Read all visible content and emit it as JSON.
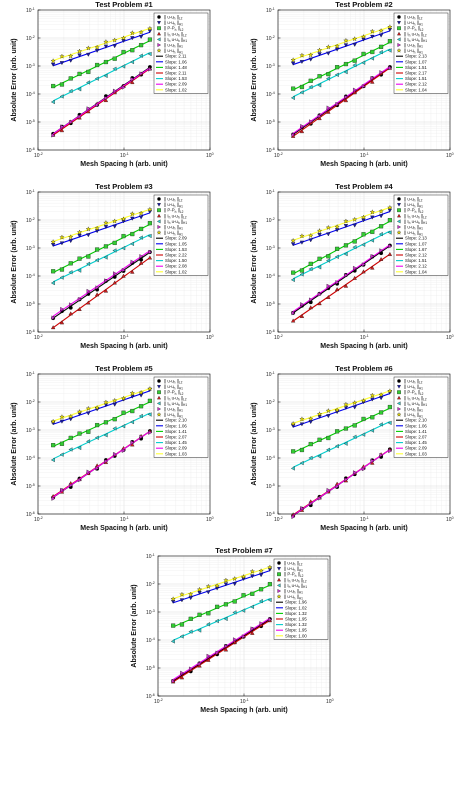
{
  "figure": {
    "xlabel": "Mesh Spacing h (arb. unit)",
    "ylabel": "Absolute Error (arb. unit)"
  },
  "legend_labels": [
    "|| u-u_h ||_L2",
    "|| u-u_h ||_H1",
    "|| P-P_h ||_L2",
    "|| I_h u-u_h ||_L2",
    "|| I_h u-u_h ||_H1",
    "|| u-u_h ||_H1",
    "|| u-u_h ||_H1"
  ],
  "series_colors": [
    "#000000",
    "#1a1aa8",
    "#33cc33",
    "#cc1f1f",
    "#33cccc",
    "#cc33cc",
    "#f2e600"
  ],
  "fit_colors": [
    "#000000",
    "#0000ee",
    "#00cc00",
    "#cc0000",
    "#00cccc",
    "#ee00ee",
    "#ffff33"
  ],
  "markers": [
    "circle",
    "triangle-down",
    "square",
    "triangle-up",
    "triangle-left",
    "triangle-right",
    "star"
  ],
  "chart_data": [
    {
      "type": "scatter",
      "title": "Test Problem #1",
      "xlabel": "Mesh Spacing h (arb. unit)",
      "ylabel": "Absolute Error (arb. unit)",
      "x_scale": "log",
      "y_scale": "log",
      "xlim": [
        0.01,
        1
      ],
      "ylim": [
        1e-06,
        0.1
      ],
      "x_ticks": [
        "10^-2",
        "10^-1",
        "10^0"
      ],
      "y_ticks": [
        "10^-6",
        "10^-5",
        "10^-4",
        "10^-3",
        "10^-2",
        "10^-1"
      ],
      "grid": true,
      "legend": "right-inside",
      "h_range": [
        0.015,
        0.2
      ],
      "series": [
        {
          "label": "|| u-u_h ||_L2",
          "c_at_h_max": 0.0009,
          "slope": 2.11
        },
        {
          "label": "|| u-u_h ||_H1",
          "c_at_h_max": 0.016,
          "slope": 1.06
        },
        {
          "label": "|| P-P_h ||_L2",
          "c_at_h_max": 0.008,
          "slope": 1.48
        },
        {
          "label": "|| I_h u-u_h ||_L2",
          "c_at_h_max": 0.0008,
          "slope": 2.11
        },
        {
          "label": "|| I_h u-u_h ||_H1",
          "c_at_h_max": 0.003,
          "slope": 1.53
        },
        {
          "label": "|| u-u_h ||_H1",
          "c_at_h_max": 0.00085,
          "slope": 2.09
        },
        {
          "label": "|| u-u_h ||_H1",
          "c_at_h_max": 0.022,
          "slope": 1.02
        }
      ],
      "slopes": [
        "Slope: 2.11",
        "Slope: 1.06",
        "Slope: 1.48",
        "Slope: 2.11",
        "Slope: 1.53",
        "Slope: 2.09",
        "Slope: 1.02"
      ]
    },
    {
      "type": "scatter",
      "title": "Test Problem #2",
      "xlabel": "Mesh Spacing h (arb. unit)",
      "ylabel": "Absolute Error (arb. unit)",
      "x_scale": "log",
      "y_scale": "log",
      "xlim": [
        0.01,
        1
      ],
      "ylim": [
        1e-06,
        0.1
      ],
      "x_ticks": [
        "10^-2",
        "10^-1",
        "10^0"
      ],
      "y_ticks": [
        "10^-6",
        "10^-5",
        "10^-4",
        "10^-3",
        "10^-2",
        "10^-1"
      ],
      "grid": true,
      "legend": "right-inside",
      "h_range": [
        0.015,
        0.2
      ],
      "series": [
        {
          "label": "|| u-u_h ||_L2",
          "c_at_h_max": 0.0009,
          "slope": 2.13
        },
        {
          "label": "|| u-u_h ||_H1",
          "c_at_h_max": 0.018,
          "slope": 1.07
        },
        {
          "label": "|| P-P_h ||_L2",
          "c_at_h_max": 0.007,
          "slope": 1.51
        },
        {
          "label": "|| I_h u-u_h ||_L2",
          "c_at_h_max": 0.00085,
          "slope": 2.17
        },
        {
          "label": "|| I_h u-u_h ||_H1",
          "c_at_h_max": 0.004,
          "slope": 1.51
        },
        {
          "label": "|| u-u_h ||_H1",
          "c_at_h_max": 0.00095,
          "slope": 2.12
        },
        {
          "label": "|| u-u_h ||_H1",
          "c_at_h_max": 0.025,
          "slope": 1.04
        }
      ],
      "slopes": [
        "Slope: 2.13",
        "Slope: 1.07",
        "Slope: 1.51",
        "Slope: 2.17",
        "Slope: 1.51",
        "Slope: 2.12",
        "Slope: 1.04"
      ]
    },
    {
      "type": "scatter",
      "title": "Test Problem #3",
      "xlabel": "Mesh Spacing h (arb. unit)",
      "ylabel": "Absolute Error (arb. unit)",
      "x_scale": "log",
      "y_scale": "log",
      "xlim": [
        0.01,
        1
      ],
      "ylim": [
        1e-06,
        0.1
      ],
      "x_ticks": [
        "10^-2",
        "10^-1",
        "10^0"
      ],
      "y_ticks": [
        "10^-6",
        "10^-5",
        "10^-4",
        "10^-3",
        "10^-2",
        "10^-1"
      ],
      "grid": true,
      "legend": "right-inside",
      "h_range": [
        0.015,
        0.2
      ],
      "series": [
        {
          "label": "|| u-u_h ||_L2",
          "c_at_h_max": 0.0007,
          "slope": 2.09
        },
        {
          "label": "|| u-u_h ||_H1",
          "c_at_h_max": 0.018,
          "slope": 1.05
        },
        {
          "label": "|| P-P_h ||_L2",
          "c_at_h_max": 0.007,
          "slope": 1.53
        },
        {
          "label": "|| I_h u-u_h ||_L2",
          "c_at_h_max": 0.00045,
          "slope": 2.22
        },
        {
          "label": "|| I_h u-u_h ||_H1",
          "c_at_h_max": 0.003,
          "slope": 1.5
        },
        {
          "label": "|| u-u_h ||_H1",
          "c_at_h_max": 0.0008,
          "slope": 2.08
        },
        {
          "label": "|| u-u_h ||_H1",
          "c_at_h_max": 0.024,
          "slope": 1.02
        }
      ],
      "slopes": [
        "Slope: 2.09",
        "Slope: 1.05",
        "Slope: 1.53",
        "Slope: 2.22",
        "Slope: 1.50",
        "Slope: 2.08",
        "Slope: 1.02"
      ]
    },
    {
      "type": "scatter",
      "title": "Test Problem #4",
      "xlabel": "Mesh Spacing h (arb. unit)",
      "ylabel": "Absolute Error (arb. unit)",
      "x_scale": "log",
      "y_scale": "log",
      "xlim": [
        0.01,
        1
      ],
      "ylim": [
        1e-06,
        0.1
      ],
      "x_ticks": [
        "10^-2",
        "10^-1",
        "10^0"
      ],
      "y_ticks": [
        "10^-6",
        "10^-5",
        "10^-4",
        "10^-3",
        "10^-2",
        "10^-1"
      ],
      "grid": true,
      "legend": "right-inside",
      "h_range": [
        0.015,
        0.2
      ],
      "series": [
        {
          "label": "|| u-u_h ||_L2",
          "c_at_h_max": 0.0012,
          "slope": 2.13
        },
        {
          "label": "|| u-u_h ||_H1",
          "c_at_h_max": 0.02,
          "slope": 1.07
        },
        {
          "label": "|| P-P_h ||_L2",
          "c_at_h_max": 0.009,
          "slope": 1.67
        },
        {
          "label": "|| I_h u-u_h ||_L2",
          "c_at_h_max": 0.0006,
          "slope": 2.12
        },
        {
          "label": "|| I_h u-u_h ||_H1",
          "c_at_h_max": 0.004,
          "slope": 1.51
        },
        {
          "label": "|| u-u_h ||_H1",
          "c_at_h_max": 0.0013,
          "slope": 2.12
        },
        {
          "label": "|| u-u_h ||_H1",
          "c_at_h_max": 0.028,
          "slope": 1.04
        }
      ],
      "slopes": [
        "Slope: 2.13",
        "Slope: 1.07",
        "Slope: 1.67",
        "Slope: 2.12",
        "Slope: 1.51",
        "Slope: 2.12",
        "Slope: 1.04"
      ]
    },
    {
      "type": "scatter",
      "title": "Test Problem #5",
      "xlabel": "Mesh Spacing h (arb. unit)",
      "ylabel": "Absolute Error (arb. unit)",
      "x_scale": "log",
      "y_scale": "log",
      "xlim": [
        0.01,
        1
      ],
      "ylim": [
        1e-06,
        0.1
      ],
      "x_ticks": [
        "10^-2",
        "10^-1",
        "10^0"
      ],
      "y_ticks": [
        "10^-6",
        "10^-5",
        "10^-4",
        "10^-3",
        "10^-2",
        "10^-1"
      ],
      "grid": true,
      "legend": "right-inside",
      "h_range": [
        0.015,
        0.2
      ],
      "series": [
        {
          "label": "|| u-u_h ||_L2",
          "c_at_h_max": 0.0009,
          "slope": 2.1
        },
        {
          "label": "|| u-u_h ||_H1",
          "c_at_h_max": 0.025,
          "slope": 1.06
        },
        {
          "label": "|| P-P_h ||_L2",
          "c_at_h_max": 0.01,
          "slope": 1.41
        },
        {
          "label": "|| I_h u-u_h ||_L2",
          "c_at_h_max": 0.0009,
          "slope": 2.07
        },
        {
          "label": "|| I_h u-u_h ||_H1",
          "c_at_h_max": 0.004,
          "slope": 1.45
        },
        {
          "label": "|| u-u_h ||_H1",
          "c_at_h_max": 0.0009,
          "slope": 2.09
        },
        {
          "label": "|| u-u_h ||_H1",
          "c_at_h_max": 0.03,
          "slope": 1.03
        }
      ],
      "slopes": [
        "Slope: 2.10",
        "Slope: 1.06",
        "Slope: 1.41",
        "Slope: 2.07",
        "Slope: 1.45",
        "Slope: 2.09",
        "Slope: 1.03"
      ]
    },
    {
      "type": "scatter",
      "title": "Test Problem #6",
      "xlabel": "Mesh Spacing h (arb. unit)",
      "ylabel": "Absolute Error (arb. unit)",
      "x_scale": "log",
      "y_scale": "log",
      "xlim": [
        0.01,
        1
      ],
      "ylim": [
        1e-06,
        0.1
      ],
      "x_ticks": [
        "10^-2",
        "10^-1",
        "10^0"
      ],
      "y_ticks": [
        "10^-6",
        "10^-5",
        "10^-4",
        "10^-3",
        "10^-2",
        "10^-1"
      ],
      "grid": true,
      "legend": "right-inside",
      "h_range": [
        0.015,
        0.2
      ],
      "series": [
        {
          "label": "|| u-u_h ||_L2",
          "c_at_h_max": 0.0002,
          "slope": 2.1
        },
        {
          "label": "|| u-u_h ||_H1",
          "c_at_h_max": 0.02,
          "slope": 1.06
        },
        {
          "label": "|| P-P_h ||_L2",
          "c_at_h_max": 0.006,
          "slope": 1.41
        },
        {
          "label": "|| I_h u-u_h ||_L2",
          "c_at_h_max": 0.0002,
          "slope": 2.07
        },
        {
          "label": "|| I_h u-u_h ||_H1",
          "c_at_h_max": 0.002,
          "slope": 1.45
        },
        {
          "label": "|| u-u_h ||_H1",
          "c_at_h_max": 0.0002,
          "slope": 2.09
        },
        {
          "label": "|| u-u_h ||_H1",
          "c_at_h_max": 0.025,
          "slope": 1.03
        }
      ],
      "slopes": [
        "Slope: 2.10",
        "Slope: 1.06",
        "Slope: 1.41",
        "Slope: 2.07",
        "Slope: 1.45",
        "Slope: 2.09",
        "Slope: 1.03"
      ]
    },
    {
      "type": "scatter",
      "title": "Test Problem #7",
      "xlabel": "Mesh Spacing h (arb. unit)",
      "ylabel": "Absolute Error (arb. unit)",
      "x_scale": "log",
      "y_scale": "log",
      "xlim": [
        0.01,
        1
      ],
      "ylim": [
        1e-06,
        0.1
      ],
      "x_ticks": [
        "10^-2",
        "10^-1",
        "10^0"
      ],
      "y_ticks": [
        "10^-6",
        "10^-5",
        "10^-4",
        "10^-3",
        "10^-2",
        "10^-1"
      ],
      "grid": true,
      "legend": "right-inside",
      "h_range": [
        0.015,
        0.2
      ],
      "series": [
        {
          "label": "|| u-u_h ||_L2",
          "c_at_h_max": 0.00055,
          "slope": 1.96
        },
        {
          "label": "|| u-u_h ||_H1",
          "c_at_h_max": 0.03,
          "slope": 1.02
        },
        {
          "label": "|| P-P_h ||_L2",
          "c_at_h_max": 0.009,
          "slope": 1.32
        },
        {
          "label": "|| I_h u-u_h ||_L2",
          "c_at_h_max": 0.0005,
          "slope": 1.95
        },
        {
          "label": "|| I_h u-u_h ||_H1",
          "c_at_h_max": 0.003,
          "slope": 1.32
        },
        {
          "label": "|| u-u_h ||_H1",
          "c_at_h_max": 0.0006,
          "slope": 1.95
        },
        {
          "label": "|| u-u_h ||_H1",
          "c_at_h_max": 0.04,
          "slope": 1.0
        }
      ],
      "slopes": [
        "Slope: 1.96",
        "Slope: 1.02",
        "Slope: 1.32",
        "Slope: 1.95",
        "Slope: 1.32",
        "Slope: 1.95",
        "Slope: 1.00"
      ]
    }
  ]
}
